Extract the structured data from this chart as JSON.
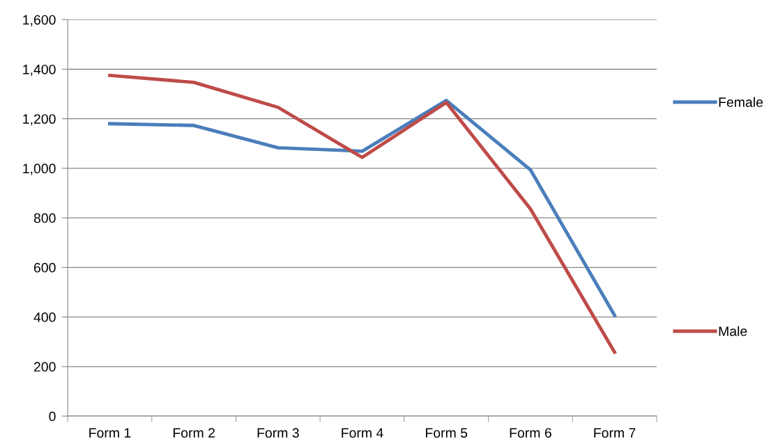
{
  "chart_data": {
    "type": "line",
    "categories": [
      "Form 1",
      "Form 2",
      "Form 3",
      "Form 4",
      "Form 5",
      "Form 6",
      "Form 7"
    ],
    "series": [
      {
        "name": "Female",
        "color": "#4a7ebb",
        "values": [
          1180,
          1173,
          1083,
          1069,
          1274,
          994,
          407
        ]
      },
      {
        "name": "Male",
        "color": "#be4b48",
        "values": [
          1375,
          1347,
          1246,
          1044,
          1266,
          836,
          258
        ]
      }
    ],
    "ylim": [
      0,
      1600
    ],
    "yticks": [
      {
        "value": 0,
        "label": "0"
      },
      {
        "value": 200,
        "label": "200"
      },
      {
        "value": 400,
        "label": "400"
      },
      {
        "value": 600,
        "label": "600"
      },
      {
        "value": 800,
        "label": "800"
      },
      {
        "value": 1000,
        "label": "1,000"
      },
      {
        "value": 1200,
        "label": "1,200"
      },
      {
        "value": 1400,
        "label": "1,400"
      },
      {
        "value": 1600,
        "label": "1,600"
      }
    ],
    "grid": "y",
    "legend": "right",
    "marker": "none",
    "line_style": "solid"
  }
}
